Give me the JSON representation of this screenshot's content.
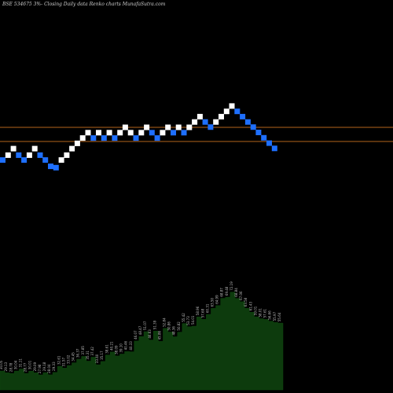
{
  "header": {
    "title": "BSE 534675 3%-  Closing Daily data  Renko  charts MunafaSutra.com"
  },
  "colors": {
    "up": "#ffffff",
    "down": "#1e6fff",
    "ref_line": "#b5651d",
    "volume_fill": "#0d3b0d",
    "label": "#bdbdbd"
  },
  "chart_data": [
    {
      "type": "renko",
      "reference_lines": [
        200.9,
        194.8
      ],
      "bricks": [
        {
          "dir": "down",
          "close": 186.8
        },
        {
          "dir": "up",
          "close": 188.9
        },
        {
          "dir": "up",
          "close": 191.7
        },
        {
          "dir": "down",
          "close": 188.9
        },
        {
          "dir": "down",
          "close": 186.8
        },
        {
          "dir": "up",
          "close": 188.9
        },
        {
          "dir": "up",
          "close": 191.7
        },
        {
          "dir": "down",
          "close": 188.9
        },
        {
          "dir": "down",
          "close": 186.8
        },
        {
          "dir": "down",
          "close": 184.1
        },
        {
          "dir": "down",
          "close": 183.5
        },
        {
          "dir": "up",
          "close": 186.8
        },
        {
          "dir": "up",
          "close": 188.9
        },
        {
          "dir": "up",
          "close": 191.7
        },
        {
          "dir": "up",
          "close": 194.0
        },
        {
          "dir": "up",
          "close": 196.3
        },
        {
          "dir": "up",
          "close": 198.6
        },
        {
          "dir": "down",
          "close": 196.3
        },
        {
          "dir": "up",
          "close": 198.6
        },
        {
          "dir": "down",
          "close": 196.3
        },
        {
          "dir": "up",
          "close": 198.6
        },
        {
          "dir": "down",
          "close": 196.3
        },
        {
          "dir": "up",
          "close": 198.6
        },
        {
          "dir": "up",
          "close": 200.9
        },
        {
          "dir": "up",
          "close": 198.6
        },
        {
          "dir": "down",
          "close": 196.3
        },
        {
          "dir": "up",
          "close": 198.6
        },
        {
          "dir": "up",
          "close": 200.9
        },
        {
          "dir": "down",
          "close": 198.6
        },
        {
          "dir": "down",
          "close": 196.3
        },
        {
          "dir": "up",
          "close": 198.6
        },
        {
          "dir": "up",
          "close": 200.9
        },
        {
          "dir": "down",
          "close": 198.6
        },
        {
          "dir": "up",
          "close": 200.9
        },
        {
          "dir": "down",
          "close": 198.6
        },
        {
          "dir": "up",
          "close": 200.9
        },
        {
          "dir": "up",
          "close": 203.2
        },
        {
          "dir": "up",
          "close": 205.5
        },
        {
          "dir": "down",
          "close": 203.2
        },
        {
          "dir": "down",
          "close": 201.0
        },
        {
          "dir": "up",
          "close": 203.2
        },
        {
          "dir": "up",
          "close": 205.5
        },
        {
          "dir": "up",
          "close": 207.8
        },
        {
          "dir": "up",
          "close": 210.1
        },
        {
          "dir": "down",
          "close": 207.8
        },
        {
          "dir": "down",
          "close": 205.5
        },
        {
          "dir": "down",
          "close": 203.2
        },
        {
          "dir": "down",
          "close": 201.0
        },
        {
          "dir": "down",
          "close": 198.7
        },
        {
          "dir": "down",
          "close": 196.4
        },
        {
          "dir": "down",
          "close": 194.1
        },
        {
          "dir": "down",
          "close": 191.8
        }
      ],
      "volume_labels": [
        "30.05",
        "29.13",
        "28.78",
        "30.04",
        "31.11",
        "28.77",
        "30.01",
        "29.09",
        "27.98",
        "29.18",
        "28.04",
        "29.33",
        "32.61",
        "31.57",
        "33.02",
        "34.45",
        "36.37",
        "37.85",
        "35.31",
        "37.42",
        "33.40",
        "35.17",
        "38.61",
        "40.21",
        "38.09",
        "39.10",
        "40.46",
        "40.33",
        "46.07",
        "48.47",
        "51.07",
        "46.63",
        "51.39",
        "45.86",
        "52.84",
        "50.86",
        "48.36",
        "50.82",
        "55.42",
        "53.73",
        "54.01",
        "58.96",
        "57.68",
        "60.31",
        "63.50",
        "64.99",
        "68.87",
        "69.48",
        "72.19",
        "68.84",
        "67.06",
        "63.58",
        "61.43",
        "59.01",
        "58.01",
        "57.61",
        "56.66",
        "55.97",
        "55.64"
      ]
    }
  ]
}
